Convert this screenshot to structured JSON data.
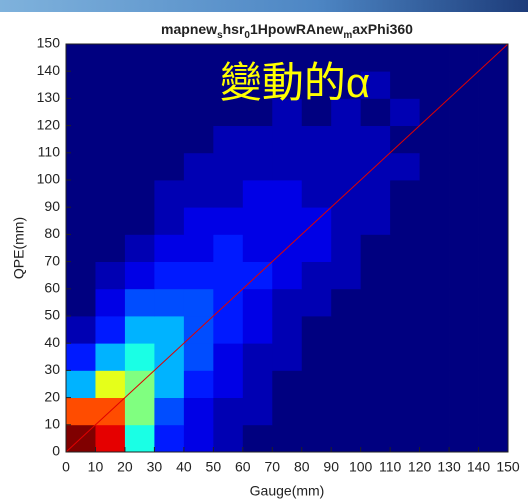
{
  "chart_data": {
    "type": "hist2d",
    "title_parts": [
      {
        "text": "mapnew"
      },
      {
        "text": "s",
        "sub": true
      },
      {
        "text": "hsr"
      },
      {
        "text": "0",
        "sub": true
      },
      {
        "text": "1HpowRAnew"
      },
      {
        "text": "m",
        "sub": true
      },
      {
        "text": "axPhi360"
      }
    ],
    "annotation": "變動的α",
    "annotation_color": "#ffff00",
    "x_label": "Gauge(mm)",
    "y_label": "QPE(mm)",
    "xlim": [
      0,
      150
    ],
    "ylim": [
      0,
      150
    ],
    "xticks": [
      0,
      10,
      20,
      30,
      40,
      50,
      60,
      70,
      80,
      90,
      100,
      110,
      120,
      130,
      140,
      150
    ],
    "yticks": [
      0,
      10,
      20,
      30,
      40,
      50,
      60,
      70,
      80,
      90,
      100,
      110,
      120,
      130,
      140,
      150
    ],
    "xbins": [
      0,
      10,
      20,
      30,
      40,
      50,
      60,
      70,
      80,
      90,
      100,
      110,
      120,
      130,
      140,
      150
    ],
    "ybins": [
      0,
      10,
      20,
      30,
      40,
      50,
      60,
      70,
      80,
      90,
      100,
      110,
      120,
      130,
      140,
      150
    ],
    "colormap": "jet",
    "clim": [
      0,
      10
    ],
    "z": [
      [
        10,
        9,
        4,
        1.5,
        1,
        0.5,
        0,
        0,
        0,
        0,
        0,
        0,
        0,
        0,
        0
      ],
      [
        8,
        8,
        5,
        2,
        1,
        0.5,
        0.5,
        0,
        0,
        0,
        0,
        0,
        0,
        0,
        0
      ],
      [
        3,
        6,
        5,
        3,
        1.5,
        1,
        0.5,
        0,
        0,
        0,
        0,
        0,
        0,
        0,
        0
      ],
      [
        1.5,
        3,
        4,
        3,
        2,
        1,
        0.5,
        0.5,
        0,
        0,
        0,
        0,
        0,
        0,
        0
      ],
      [
        0.5,
        1.5,
        3,
        3,
        2,
        1.5,
        1,
        0.5,
        0,
        0,
        0,
        0,
        0,
        0,
        0
      ],
      [
        0,
        1,
        2,
        2,
        2,
        1.5,
        1,
        0.5,
        0.5,
        0,
        0,
        0,
        0,
        0,
        0
      ],
      [
        0,
        0.5,
        1,
        1.5,
        1.5,
        1.5,
        1.5,
        1,
        0.5,
        0.5,
        0,
        0,
        0,
        0,
        0
      ],
      [
        0,
        0,
        0.5,
        1,
        1,
        1.5,
        1,
        1,
        1,
        0.5,
        0,
        0,
        0,
        0,
        0
      ],
      [
        0,
        0,
        0,
        0.5,
        1,
        1,
        1,
        1,
        1,
        0.5,
        0.5,
        0,
        0,
        0,
        0
      ],
      [
        0,
        0,
        0,
        0.5,
        0.5,
        0.5,
        1,
        1,
        0.5,
        0.5,
        0.5,
        0,
        0,
        0,
        0
      ],
      [
        0,
        0,
        0,
        0,
        0.5,
        0.5,
        0.5,
        0.5,
        0.5,
        0.5,
        0.5,
        0.5,
        0,
        0,
        0
      ],
      [
        0,
        0,
        0,
        0,
        0,
        0.5,
        0.5,
        0.5,
        0.5,
        0.5,
        0.5,
        0,
        0,
        0,
        0
      ],
      [
        0,
        0,
        0,
        0,
        0,
        0,
        0,
        0.5,
        0,
        0.5,
        0,
        0.5,
        0,
        0,
        0
      ],
      [
        0,
        0,
        0,
        0,
        0,
        0,
        0,
        0,
        0,
        0,
        0.5,
        0,
        0,
        0,
        0
      ],
      [
        0,
        0,
        0,
        0,
        0,
        0,
        0,
        0,
        0,
        0,
        0,
        0,
        0,
        0,
        0
      ]
    ],
    "diagonal": true,
    "diagonal_color": "#e00000"
  }
}
